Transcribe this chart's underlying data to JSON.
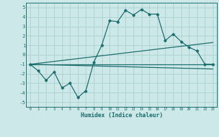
{
  "xlabel": "Humidex (Indice chaleur)",
  "xlim": [
    -0.5,
    23.5
  ],
  "ylim": [
    -5.5,
    5.5
  ],
  "xticks": [
    0,
    1,
    2,
    3,
    4,
    5,
    6,
    7,
    8,
    9,
    10,
    11,
    12,
    13,
    14,
    15,
    16,
    17,
    18,
    19,
    20,
    21,
    22,
    23
  ],
  "yticks": [
    -5,
    -4,
    -3,
    -2,
    -1,
    0,
    1,
    2,
    3,
    4,
    5
  ],
  "bg_color": "#cce8e8",
  "grid_color": "#aacece",
  "line_color": "#1a6b6b",
  "lines": [
    {
      "x": [
        0,
        1,
        2,
        3,
        4,
        5,
        6,
        7,
        8,
        9,
        10,
        11,
        12,
        13,
        14,
        15,
        16,
        17,
        18,
        19,
        20,
        21,
        22,
        23
      ],
      "y": [
        -1,
        -1.7,
        -2.7,
        -1.8,
        -3.5,
        -3.0,
        -4.5,
        -3.8,
        -0.8,
        1.0,
        3.6,
        3.5,
        4.7,
        4.2,
        4.8,
        4.3,
        4.3,
        1.5,
        2.2,
        1.4,
        0.8,
        0.4,
        -1.0,
        -1.0
      ],
      "marker": "o",
      "markersize": 2.5
    },
    {
      "x": [
        0,
        23
      ],
      "y": [
        -1.0,
        -1.0
      ],
      "marker": null,
      "markersize": 0
    },
    {
      "x": [
        0,
        23
      ],
      "y": [
        -1.0,
        1.3
      ],
      "marker": null,
      "markersize": 0
    },
    {
      "x": [
        0,
        23
      ],
      "y": [
        -1.0,
        -1.5
      ],
      "marker": null,
      "markersize": 0
    }
  ]
}
